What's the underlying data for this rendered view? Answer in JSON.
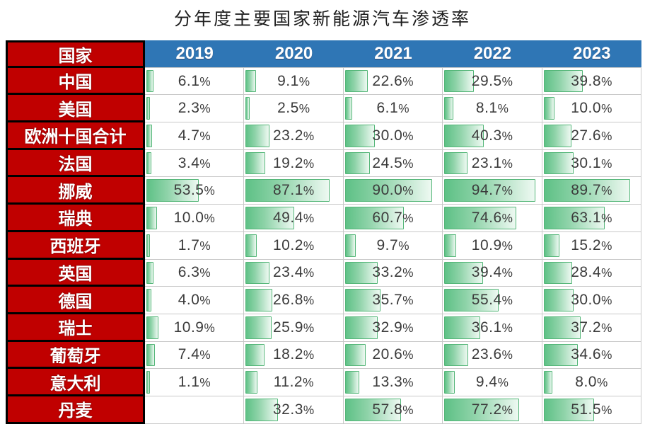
{
  "title": "分年度主要国家新能源汽车渗透率",
  "table": {
    "country_header": "国家",
    "year_headers": [
      "2019",
      "2020",
      "2021",
      "2022",
      "2023"
    ]
  },
  "colors": {
    "label_bg": "#C00000",
    "label_text": "#FFFFFF",
    "label_border": "#000000",
    "header_bg": "#2F76B5",
    "header_text": "#FFFFFF",
    "bar_fill_start": "#5EC186",
    "bar_fill_end": "#EEF9F2",
    "bar_border": "#54B678",
    "grid_line": "#C9C9C9",
    "value_text": "#3B3B3B"
  },
  "chart_data": {
    "type": "table",
    "title": "分年度主要国家新能源汽车渗透率",
    "columns": [
      "国家",
      "2019",
      "2020",
      "2021",
      "2022",
      "2023"
    ],
    "unit": "percent",
    "value_suffix": "%",
    "value_decimals": 1,
    "bar_scale_max": 100,
    "bar_style": "gradient-green-databar",
    "rows": [
      {
        "country": "中国",
        "values": [
          6.1,
          9.1,
          22.6,
          29.5,
          39.8
        ]
      },
      {
        "country": "美国",
        "values": [
          2.3,
          2.5,
          6.1,
          8.1,
          10.0
        ]
      },
      {
        "country": "欧洲十国合计",
        "values": [
          4.7,
          23.2,
          30.0,
          40.3,
          27.6
        ]
      },
      {
        "country": "法国",
        "values": [
          3.4,
          19.2,
          24.5,
          23.1,
          30.1
        ]
      },
      {
        "country": "挪威",
        "values": [
          53.5,
          87.1,
          90.0,
          94.7,
          89.7
        ]
      },
      {
        "country": "瑞典",
        "values": [
          10.0,
          49.4,
          60.7,
          74.6,
          63.1
        ]
      },
      {
        "country": "西班牙",
        "values": [
          1.7,
          10.2,
          9.7,
          10.9,
          15.2
        ]
      },
      {
        "country": "英国",
        "values": [
          6.3,
          23.4,
          33.2,
          39.4,
          28.4
        ]
      },
      {
        "country": "德国",
        "values": [
          4.0,
          26.8,
          35.7,
          55.4,
          30.0
        ]
      },
      {
        "country": "瑞士",
        "values": [
          10.9,
          25.9,
          32.9,
          36.1,
          37.2
        ]
      },
      {
        "country": "葡萄牙",
        "values": [
          7.4,
          18.2,
          20.6,
          23.6,
          34.6
        ]
      },
      {
        "country": "意大利",
        "values": [
          1.1,
          11.2,
          13.3,
          9.4,
          8.0
        ]
      },
      {
        "country": "丹麦",
        "values": [
          null,
          32.3,
          57.8,
          77.2,
          51.5
        ]
      }
    ]
  }
}
